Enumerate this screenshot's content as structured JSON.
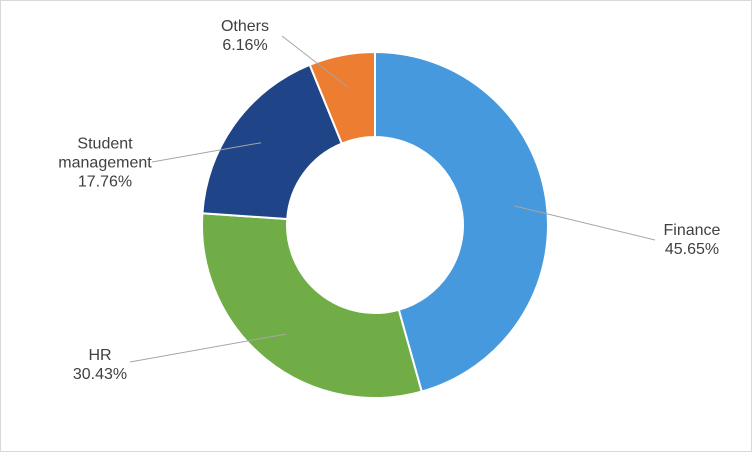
{
  "chart_data": {
    "type": "pie",
    "categories": [
      "Finance",
      "HR",
      "Student management",
      "Others"
    ],
    "values": [
      45.65,
      30.43,
      17.76,
      6.16
    ],
    "value_labels": [
      "45.65%",
      "30.43%",
      "17.76%",
      "6.16%"
    ],
    "colors": [
      "#4599dc",
      "#70ad47",
      "#1f4487",
      "#ed7d31"
    ]
  }
}
